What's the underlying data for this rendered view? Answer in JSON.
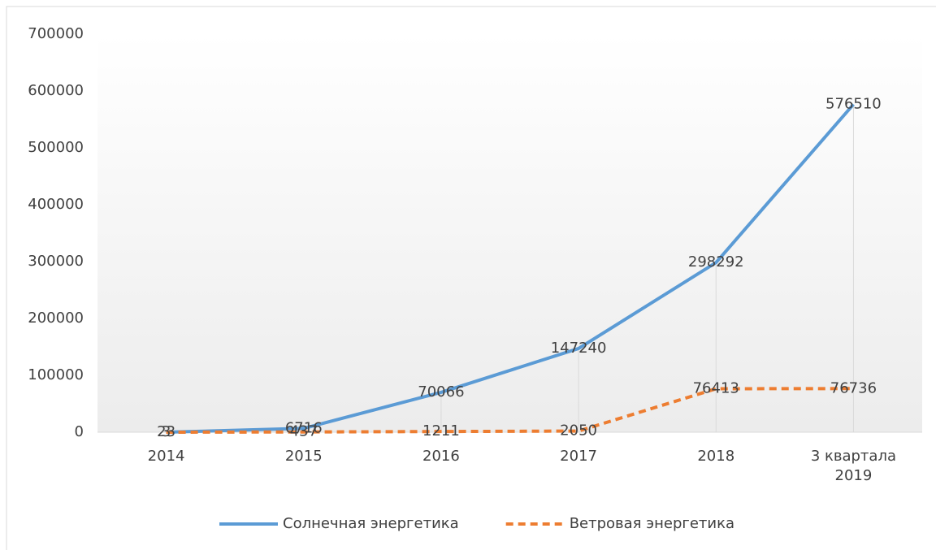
{
  "chart_data": {
    "type": "line",
    "categories": [
      "2014",
      "2015",
      "2016",
      "2017",
      "2018",
      "3 квартала 2019"
    ],
    "series": [
      {
        "name": "Солнечная энергетика",
        "color": "#5b9bd5",
        "dash": "solid",
        "values": [
          23,
          6716,
          70066,
          147240,
          298292,
          576510
        ]
      },
      {
        "name": "Ветровая энергетика",
        "color": "#ed7d31",
        "dash": "dashed",
        "values": [
          3,
          437,
          1211,
          2050,
          76413,
          76736
        ]
      }
    ],
    "ylim": [
      0,
      700000
    ],
    "yticks": [
      0,
      100000,
      200000,
      300000,
      400000,
      500000,
      600000,
      700000
    ],
    "grid": false,
    "legend": "bottom"
  }
}
